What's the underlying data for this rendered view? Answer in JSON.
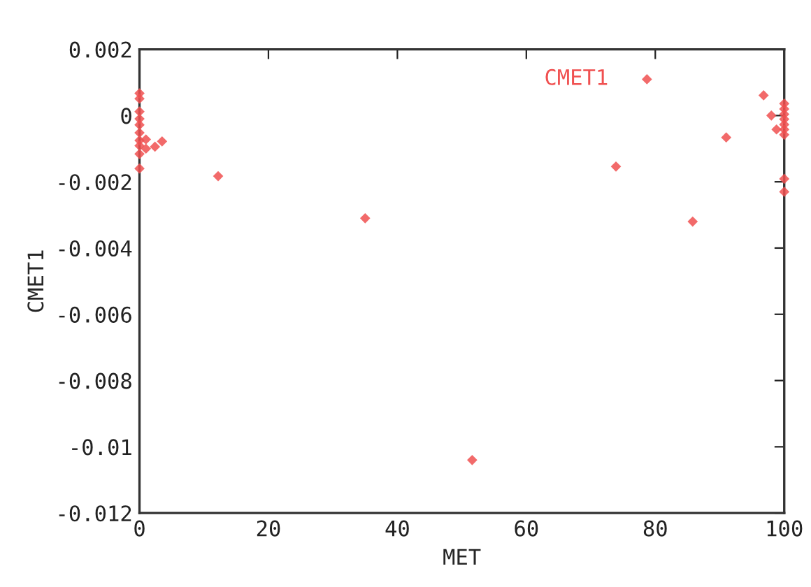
{
  "chart_data": {
    "type": "scatter",
    "xlabel": "MET",
    "ylabel": "CMET1",
    "xlim": [
      0,
      100
    ],
    "ylim": [
      -0.012,
      0.002
    ],
    "xticks": [
      0,
      20,
      40,
      60,
      80,
      100
    ],
    "yticks": [
      {
        "value": -0.012,
        "label": "-0.012"
      },
      {
        "value": -0.01,
        "label": "-0.01"
      },
      {
        "value": -0.008,
        "label": "-0.008"
      },
      {
        "value": -0.006,
        "label": "-0.006"
      },
      {
        "value": -0.004,
        "label": "-0.004"
      },
      {
        "value": -0.002,
        "label": "-0.002"
      },
      {
        "value": 0,
        "label": "0"
      },
      {
        "value": 0.002,
        "label": "0.002"
      }
    ],
    "grid": false,
    "legend": "top right",
    "marker": "diamond",
    "series": [
      {
        "name": "CMET1",
        "color": "#f05050",
        "x": [
          0,
          0,
          0,
          0,
          0,
          0,
          0,
          0,
          0,
          0,
          1.0,
          1.0,
          2.4,
          3.5,
          12.2,
          35.0,
          51.6,
          73.9,
          85.8,
          91.0,
          96.8,
          98.0,
          98.8,
          100,
          100,
          100,
          100,
          100,
          100,
          100,
          100,
          100
        ],
        "values": [
          0.00067,
          0.00051,
          0.00012,
          -0.0001,
          -0.00028,
          -0.00052,
          -0.00075,
          -0.00091,
          -0.00116,
          -0.0016,
          -0.00072,
          -0.001,
          -0.00094,
          -0.00078,
          -0.00183,
          -0.0031,
          -0.0104,
          -0.00154,
          -0.0032,
          -0.00066,
          0.00061,
          0.0,
          -0.00042,
          0.00036,
          0.0002,
          4e-05,
          -0.00011,
          -0.00027,
          -0.00042,
          -0.00058,
          -0.00191,
          -0.0023
        ]
      }
    ]
  }
}
